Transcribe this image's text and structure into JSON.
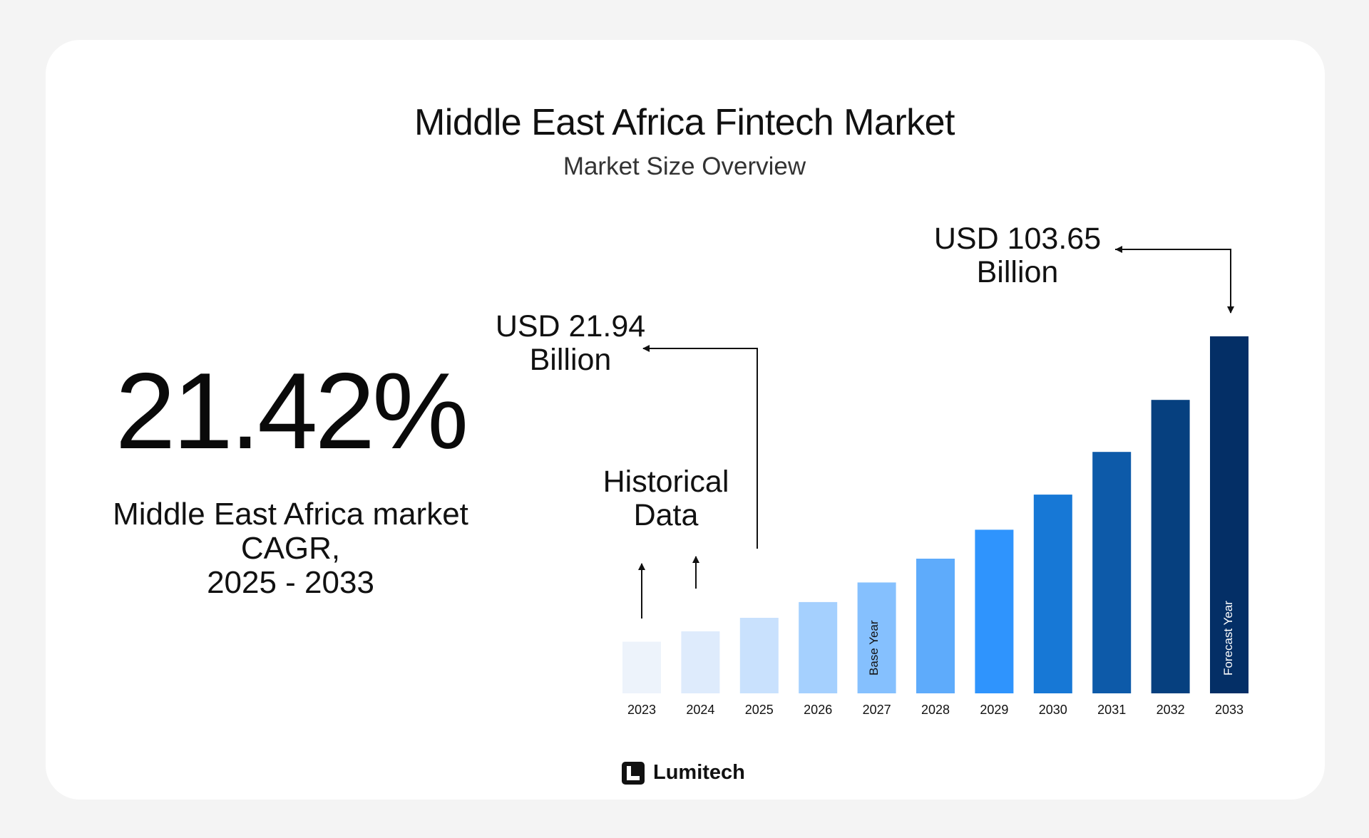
{
  "header": {
    "title": "Middle East Africa Fintech Market",
    "subtitle": "Market Size Overview"
  },
  "kpi": {
    "cagr_value": "21.42%",
    "caption_line1": "Middle East Africa market",
    "caption_line2": "CAGR,",
    "caption_line3": "2025 - 2033"
  },
  "annotations": {
    "historical_line1": "Historical",
    "historical_line2": "Data",
    "start_value_line1": "USD 21.94",
    "start_value_line2": "Billion",
    "end_value_line1": "USD 103.65",
    "end_value_line2": "Billion",
    "base_year_label": "Base Year",
    "forecast_year_label": "Forecast Year"
  },
  "brand": {
    "name": "Lumitech"
  },
  "chart_data": {
    "type": "bar",
    "title": "Middle East Africa Fintech Market",
    "subtitle": "Market Size Overview",
    "xlabel": "",
    "ylabel": "",
    "unit": "USD Billion",
    "categories": [
      "2023",
      "2024",
      "2025",
      "2026",
      "2027",
      "2028",
      "2029",
      "2030",
      "2031",
      "2032",
      "2033"
    ],
    "values": [
      15.0,
      18.0,
      21.94,
      26.5,
      32.2,
      39.1,
      47.5,
      57.7,
      70.1,
      85.2,
      103.65
    ],
    "ylim": [
      0,
      110
    ],
    "grid": false,
    "legend": "none",
    "colors": [
      "#edf3fb",
      "#deebfc",
      "#c9e1fd",
      "#a5d0fe",
      "#85c0fe",
      "#5eabfb",
      "#2f94fd",
      "#1778d6",
      "#0d5aa9",
      "#06407f",
      "#042f66"
    ]
  }
}
